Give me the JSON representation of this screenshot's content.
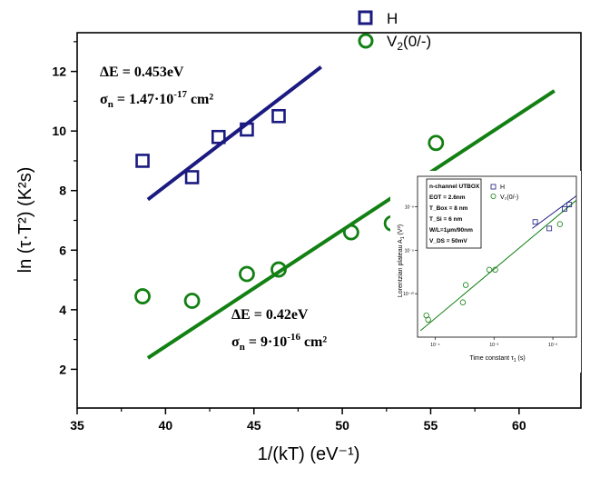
{
  "colors": {
    "H": "#1a1a80",
    "V2": "#128012",
    "axis": "#000000"
  },
  "chart_data": [
    {
      "type": "scatter",
      "xlabel": "1/(kT) (eV⁻¹)",
      "ylabel": "ln (τ·T²) (K²s)",
      "xlim": [
        35,
        63.5
      ],
      "ylim": [
        0.7,
        13.3
      ],
      "xticks": [
        35,
        40,
        45,
        50,
        55,
        60
      ],
      "xtick_labels": [
        "35",
        "40",
        "45",
        "50",
        "55",
        "60"
      ],
      "yticks": [
        2,
        4,
        6,
        8,
        10,
        12
      ],
      "ytick_labels": [
        "2",
        "4",
        "6",
        "8",
        "10",
        "12"
      ],
      "legend_position": "top-right",
      "series": [
        {
          "name": "H",
          "marker": "square",
          "points": [
            [
              38.7,
              9.0
            ],
            [
              41.5,
              8.45
            ],
            [
              43.0,
              9.8
            ],
            [
              44.6,
              10.05
            ],
            [
              46.4,
              10.5
            ]
          ],
          "fit_line": [
            [
              39.0,
              7.7
            ],
            [
              48.8,
              12.15
            ]
          ],
          "annotation": {
            "line1": "ΔE = 0.453eV",
            "line2_main": "σ",
            "line2_sub": "n",
            "line2_mid": " = 1.47·10",
            "line2_sup": "-17",
            "line2_end": " cm²"
          }
        },
        {
          "name": "V₂(0/-)",
          "name_main": "V",
          "name_sub": "2",
          "name_rest": "(0/-)",
          "marker": "circle",
          "points": [
            [
              38.7,
              4.45
            ],
            [
              41.5,
              4.3
            ],
            [
              44.6,
              5.2
            ],
            [
              46.4,
              5.35
            ],
            [
              50.5,
              6.6
            ],
            [
              52.8,
              6.9
            ],
            [
              55.3,
              9.6
            ]
          ],
          "fit_line": [
            [
              39.0,
              2.38
            ],
            [
              62.0,
              11.35
            ]
          ],
          "annotation": {
            "line1": "ΔE = 0.42eV",
            "line2_main": "σ",
            "line2_sub": "n",
            "line2_mid": " = 9·10",
            "line2_sup": "-16",
            "line2_end": " cm²"
          }
        }
      ]
    },
    {
      "type": "scatter",
      "role": "inset",
      "xlabel_main": "Time constant τ",
      "xlabel_sub": "1",
      "xlabel_unit": " (s)",
      "ylabel_main": "Lorentzian plateau A",
      "ylabel_sub": "1",
      "ylabel_unit": " (V²)",
      "x_scale": "log",
      "y_scale": "log",
      "xlim_log10": [
        -4.3,
        -1.6
      ],
      "ylim_log10": [
        -11.0,
        -7.3
      ],
      "xtick_labels": [
        "10⁻⁴",
        "10⁻³",
        "10⁻²"
      ],
      "ytick_labels": [
        "10⁻¹⁰",
        "10⁻⁹",
        "10⁻⁸"
      ],
      "info_box": [
        "n-channel UTBOX",
        "EOT = 2.6nm",
        "T_Box = 8 nm",
        "T_Si = 6 nm",
        "W/L=1μm/90nm",
        "V_DS = 50mV"
      ],
      "legend": [
        "H",
        "V₂(0/-)"
      ],
      "series": [
        {
          "name": "H",
          "points_log10": [
            [
              -2.3,
              -8.35
            ],
            [
              -2.06,
              -8.5
            ],
            [
              -1.8,
              -8.05
            ],
            [
              -1.72,
              -7.95
            ]
          ],
          "fit_line_log10": [
            [
              -2.35,
              -8.5
            ],
            [
              -1.6,
              -7.75
            ]
          ]
        },
        {
          "name": "V₂(0/-)",
          "points_log10": [
            [
              -4.15,
              -10.5
            ],
            [
              -4.12,
              -10.6
            ],
            [
              -3.53,
              -10.2
            ],
            [
              -3.48,
              -9.8
            ],
            [
              -3.08,
              -9.45
            ],
            [
              -2.98,
              -9.45
            ],
            [
              -1.88,
              -8.4
            ]
          ],
          "fit_line_log10": [
            [
              -4.25,
              -10.85
            ],
            [
              -1.6,
              -7.85
            ]
          ]
        }
      ]
    }
  ]
}
